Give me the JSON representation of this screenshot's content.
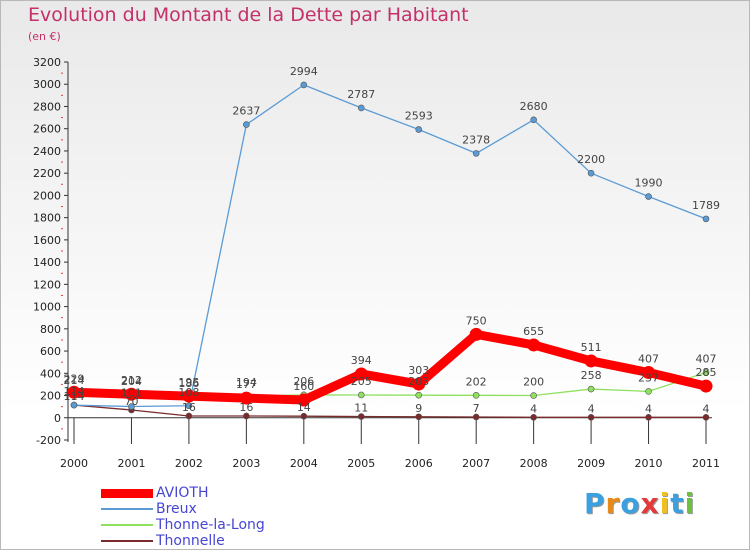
{
  "title": "Evolution du Montant de la Dette par Habitant",
  "subtitle": "(en €)",
  "logo_text": "Proxiti",
  "logo_colors": [
    "#3aa0e0",
    "#e88a1a",
    "#3aa0e0",
    "#e03a3a",
    "#f0c020",
    "#3aa0e0",
    "#6cc040"
  ],
  "chart_data": {
    "type": "line",
    "title": "Evolution du Montant de la Dette par Habitant",
    "subtitle": "(en €)",
    "x": [
      "2000",
      "2001",
      "2002",
      "2003",
      "2004",
      "2005",
      "2006",
      "2007",
      "2008",
      "2009",
      "2010",
      "2011"
    ],
    "ylim": [
      -200,
      3200
    ],
    "yticks": [
      -200,
      0,
      200,
      400,
      600,
      800,
      1000,
      1200,
      1400,
      1600,
      1800,
      2000,
      2200,
      2400,
      2600,
      2800,
      3000,
      3200
    ],
    "grid": false,
    "legend_position": "bottom-left",
    "series": [
      {
        "name": "AVIOTH",
        "color": "#ff0000",
        "values": [
          229,
          212,
          195,
          177,
          160,
          394,
          303,
          750,
          655,
          511,
          407,
          285
        ],
        "labels": [
          "229",
          "212",
          "195",
          "177",
          "160",
          "394",
          "303",
          "750",
          "655",
          "511",
          "407",
          "285"
        ]
      },
      {
        "name": "Breux",
        "color": "#5b9bd5",
        "values": [
          114,
          101,
          108,
          2637,
          2994,
          2787,
          2593,
          2378,
          2680,
          2200,
          1990,
          1789
        ],
        "labels": [
          "114",
          "101",
          "108",
          "2637",
          "2994",
          "2787",
          "2593",
          "2378",
          "2680",
          "2200",
          "1990",
          "1789"
        ]
      },
      {
        "name": "Thonne-la-Long",
        "color": "#90e060",
        "values": [
          214,
          204,
          186,
          194,
          206,
          205,
          203,
          202,
          200,
          258,
          237,
          407
        ],
        "labels": [
          "214",
          "204",
          "186",
          "194",
          "206",
          "205",
          "203",
          "202",
          "200",
          "258",
          "237",
          "407"
        ]
      },
      {
        "name": "Thonnelle",
        "color": "#7a2a2a",
        "values": [
          114,
          70,
          16,
          16,
          14,
          11,
          9,
          7,
          4,
          4,
          4,
          4
        ],
        "labels": [
          "114",
          "70",
          "16",
          "16",
          "14",
          "11",
          "9",
          "7",
          "4",
          "4",
          "4",
          "4"
        ]
      }
    ]
  }
}
